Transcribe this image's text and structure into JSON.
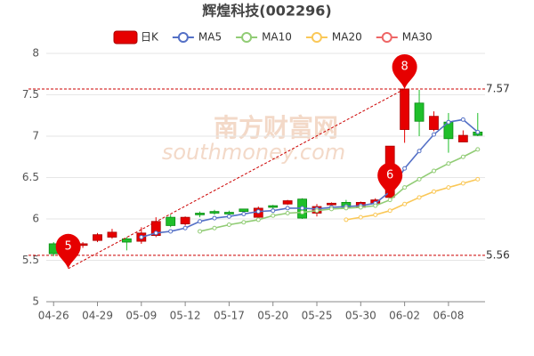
{
  "chart_data": {
    "type": "candlestick",
    "title": "辉煌科技(002296)",
    "watermark": [
      "南方财富网",
      "southmoney.com"
    ],
    "categories": [
      "04-26",
      null,
      null,
      "04-29",
      null,
      null,
      "05-09",
      null,
      null,
      "05-12",
      null,
      null,
      "05-17",
      null,
      null,
      "05-20",
      null,
      null,
      "05-25",
      null,
      null,
      "05-30",
      null,
      null,
      "06-02",
      null,
      null,
      "06-08",
      null,
      null
    ],
    "candles": {
      "name": "日K",
      "up_color": "#e60000",
      "down_color": "#1fbf2a",
      "open": [
        5.7,
        5.6,
        5.68,
        5.74,
        5.78,
        5.76,
        5.73,
        5.8,
        6.02,
        5.94,
        6.07,
        6.09,
        6.08,
        6.12,
        6.02,
        6.16,
        6.18,
        6.24,
        6.07,
        6.17,
        6.2,
        6.14,
        6.19,
        6.26,
        7.08,
        7.4,
        7.08,
        7.17,
        6.93,
        7.05
      ],
      "close": [
        5.58,
        5.65,
        5.7,
        5.81,
        5.84,
        5.72,
        5.83,
        5.97,
        5.92,
        6.02,
        6.05,
        6.07,
        6.06,
        6.09,
        6.13,
        6.14,
        6.22,
        6.01,
        6.15,
        6.19,
        6.14,
        6.2,
        6.23,
        6.88,
        7.57,
        7.18,
        7.24,
        6.97,
        7.01,
        7.01
      ],
      "low": [
        5.55,
        5.45,
        5.65,
        5.72,
        5.76,
        5.62,
        5.7,
        5.78,
        5.9,
        5.92,
        6.02,
        6.05,
        6.04,
        6.07,
        6.0,
        6.12,
        6.17,
        6.0,
        6.03,
        6.15,
        6.11,
        6.12,
        6.17,
        6.24,
        6.92,
        7.0,
        7.06,
        6.8,
        6.98,
        7.0
      ],
      "high": [
        5.72,
        5.68,
        5.72,
        5.83,
        5.88,
        5.78,
        5.9,
        6.02,
        6.05,
        6.03,
        6.09,
        6.11,
        6.1,
        6.12,
        6.15,
        6.17,
        6.23,
        6.25,
        6.18,
        6.2,
        6.23,
        6.21,
        6.25,
        6.88,
        7.57,
        7.56,
        7.3,
        7.28,
        7.07,
        7.28
      ]
    },
    "series": [
      {
        "name": "MA5",
        "color": "#5470c6",
        "values": [
          null,
          null,
          null,
          null,
          null,
          null,
          5.78,
          5.83,
          5.85,
          5.89,
          5.97,
          6.01,
          6.03,
          6.06,
          6.09,
          6.1,
          6.13,
          6.13,
          6.12,
          6.14,
          6.15,
          6.16,
          6.19,
          6.33,
          6.61,
          6.82,
          7.02,
          7.17,
          7.2,
          7.05
        ]
      },
      {
        "name": "MA10",
        "color": "#91cc75",
        "values": [
          null,
          null,
          null,
          null,
          null,
          null,
          null,
          null,
          null,
          null,
          5.85,
          5.89,
          5.93,
          5.96,
          5.99,
          6.04,
          6.07,
          6.08,
          6.1,
          6.12,
          6.13,
          6.14,
          6.16,
          6.23,
          6.38,
          6.48,
          6.58,
          6.67,
          6.75,
          6.84
        ]
      },
      {
        "name": "MA20",
        "color": "#fac858",
        "values": [
          null,
          null,
          null,
          null,
          null,
          null,
          null,
          null,
          null,
          null,
          null,
          null,
          null,
          null,
          null,
          null,
          null,
          null,
          null,
          null,
          5.99,
          6.02,
          6.05,
          6.1,
          6.18,
          6.26,
          6.33,
          6.38,
          6.43,
          6.48
        ]
      },
      {
        "name": "MA30",
        "color": "#ee6666",
        "values": [
          null,
          null,
          null,
          null,
          null,
          null,
          null,
          null,
          null,
          null,
          null,
          null,
          null,
          null,
          null,
          null,
          null,
          null,
          null,
          null,
          null,
          null,
          null,
          null,
          null,
          null,
          null,
          null,
          null,
          null
        ]
      }
    ],
    "annotations": [
      {
        "text": "5",
        "index": 1,
        "value": 5.4
      },
      {
        "text": "6",
        "index": 23,
        "value": 6.26
      },
      {
        "text": "8",
        "index": 24,
        "value": 7.57
      }
    ],
    "mark_lines": [
      7.57,
      5.56
    ],
    "ylim": [
      5,
      8
    ],
    "yticks": [
      5,
      5.5,
      6,
      6.5,
      7,
      7.5,
      8
    ],
    "grid": true
  }
}
